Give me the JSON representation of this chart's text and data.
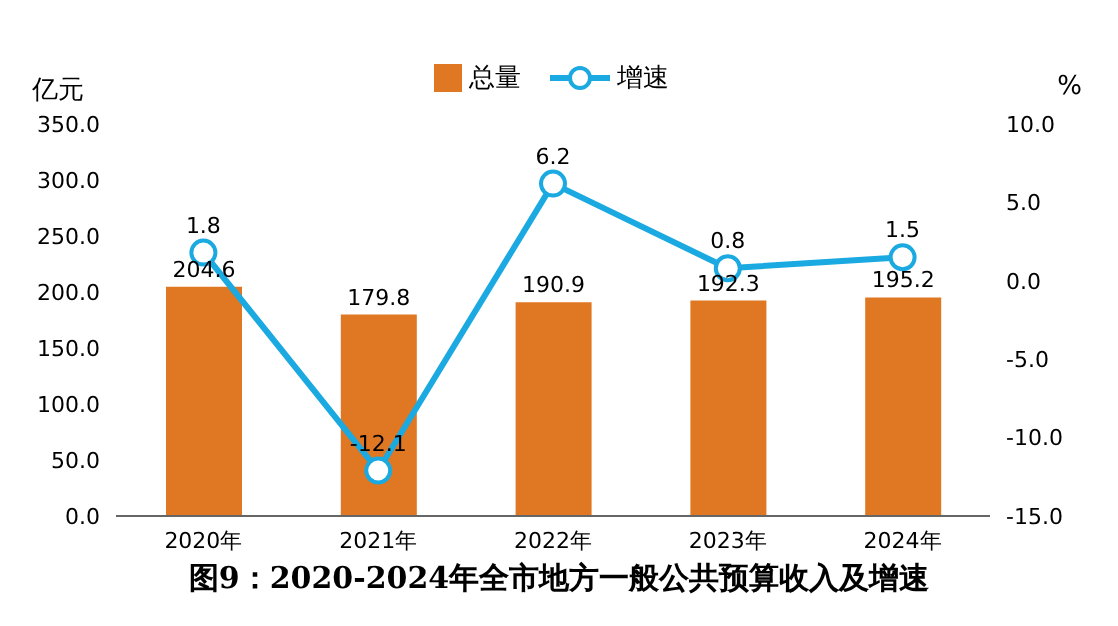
{
  "chart_data": {
    "type": "bar",
    "title": "图9：2020-2024年全市地方一般公共预算收入及增速",
    "ylabel": "亿元",
    "y2label": "%",
    "categories": [
      "2020年",
      "2021年",
      "2022年",
      "2023年",
      "2024年"
    ],
    "series": [
      {
        "name": "总量",
        "color": "#e07722",
        "values": [
          204.6,
          179.8,
          190.9,
          192.3,
          195.2
        ]
      },
      {
        "name": "增速",
        "type": "line",
        "axis": "y2",
        "color": "#1ba9e1",
        "values": [
          1.8,
          -12.1,
          6.2,
          0.8,
          1.5
        ]
      }
    ],
    "ylim": [
      0,
      350
    ],
    "yticks": [
      {
        "value": 0,
        "label": "0.0"
      },
      {
        "value": 50,
        "label": "50.0"
      },
      {
        "value": 100,
        "label": "100.0"
      },
      {
        "value": 150,
        "label": "150.0"
      },
      {
        "value": 200,
        "label": "200.0"
      },
      {
        "value": 250,
        "label": "250.0"
      },
      {
        "value": 300,
        "label": "300.0"
      },
      {
        "value": 350,
        "label": "350.0"
      }
    ],
    "y2lim": [
      -15,
      10
    ],
    "y2ticks": [
      {
        "value": -15,
        "label": "-15.0"
      },
      {
        "value": -10,
        "label": "-10.0"
      },
      {
        "value": -5,
        "label": "-5.0"
      },
      {
        "value": 0,
        "label": "0.0"
      },
      {
        "value": 5,
        "label": "5.0"
      },
      {
        "value": 10,
        "label": "10.0"
      }
    ],
    "data_labels": true,
    "legend": "top",
    "grid": false,
    "marker": "circle"
  }
}
